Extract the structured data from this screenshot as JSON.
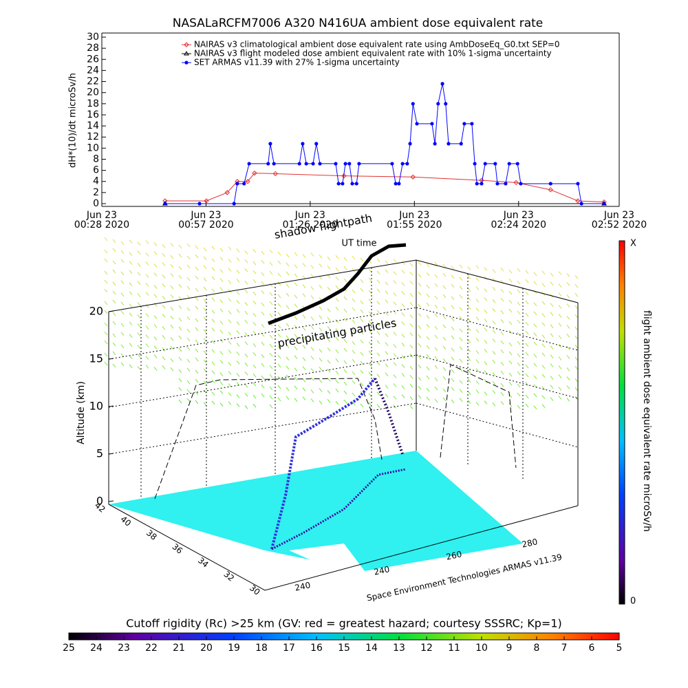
{
  "chart_data": {
    "type": "line",
    "title": "NASALaRCFM7006  A320 N416UA ambient dose equivalent rate",
    "y_label": "dH*(10)/dt microSv/h",
    "x_label": "UT time",
    "xlim": [
      28,
      172
    ],
    "xticks": [
      {
        "value": 28,
        "label": "Jun 23\n00:28 2020"
      },
      {
        "value": 57,
        "label": "Jun 23\n00:57 2020"
      },
      {
        "value": 86,
        "label": "Jun 23\n01:26 2020"
      },
      {
        "value": 115,
        "label": "Jun 23\n01:55 2020"
      },
      {
        "value": 144,
        "label": "Jun 23\n02:24 2020"
      },
      {
        "value": 172,
        "label": "Jun 23\n02:52 2020"
      }
    ],
    "ylim": [
      0,
      30
    ],
    "yticks": [
      0,
      2,
      4,
      6,
      8,
      10,
      12,
      14,
      16,
      18,
      20,
      22,
      24,
      26,
      28,
      30
    ],
    "series": [
      {
        "name": "NAIRAS v3 climatological ambient dose equivalent rate using AmbDoseEq_G0.txt SEP=0",
        "color": "#e03030",
        "marker": "diamond",
        "x": [
          45.6,
          57.1,
          62.9,
          65.7,
          68.6,
          70.5,
          76.3,
          95.4,
          114.6,
          133.7,
          143.3,
          152.9,
          160.5,
          167.8
        ],
        "values": [
          0.5,
          0.5,
          2,
          4,
          4,
          5.5,
          5.4,
          5,
          4.8,
          4.2,
          3.8,
          2.5,
          0.5,
          0.3
        ]
      },
      {
        "name": "NAIRAS v3 flight modeled dose ambient equivalent rate with 10% 1-sigma uncertainty",
        "color": "#000000",
        "marker": "triangle",
        "x": [
          45.6,
          167.8
        ],
        "values": [
          0,
          0
        ]
      },
      {
        "name": "SET ARMAS v11.39 with 27% 1-sigma uncertainty",
        "color": "#0000ff",
        "marker": "circle",
        "x": [
          45.6,
          55.2,
          64.8,
          65.7,
          67.6,
          69.0,
          74.3,
          74.9,
          75.9,
          83.0,
          83.9,
          84.9,
          86.8,
          87.7,
          88.7,
          93.1,
          93.9,
          95.0,
          95.8,
          96.9,
          97.7,
          98.9,
          99.6,
          108.8,
          109.8,
          110.7,
          111.7,
          113.0,
          113.8,
          114.6,
          115.7,
          119.9,
          120.7,
          121.6,
          122.8,
          123.7,
          124.5,
          128.0,
          128.9,
          131.0,
          131.8,
          132.4,
          133.7,
          134.7,
          137.5,
          138.1,
          140.4,
          141.4,
          143.7,
          144.6,
          152.9,
          160.5,
          161.5,
          167.8
        ],
        "values": [
          0,
          0,
          0,
          3.6,
          3.6,
          7.2,
          7.2,
          10.8,
          7.2,
          7.2,
          10.8,
          7.2,
          7.2,
          10.8,
          7.2,
          7.2,
          3.6,
          3.6,
          7.2,
          7.2,
          3.6,
          3.6,
          7.2,
          7.2,
          3.6,
          3.6,
          7.2,
          7.2,
          10.8,
          18,
          14.4,
          14.4,
          10.8,
          18,
          21.6,
          18,
          10.8,
          10.8,
          14.4,
          14.4,
          7.2,
          3.6,
          3.6,
          7.2,
          7.2,
          3.6,
          3.6,
          7.2,
          7.2,
          3.6,
          3.6,
          3.6,
          0,
          0
        ]
      }
    ]
  },
  "scene": {
    "annotations": [
      "shadow flightpath",
      "precipitating particles"
    ],
    "z_label": "Altitude (km)",
    "zticks": [
      0,
      5,
      10,
      15,
      20
    ],
    "lat_ticks": [
      42,
      40,
      38,
      36,
      34,
      32,
      30
    ],
    "lon_ticks": [
      240,
      240,
      260,
      280
    ],
    "credit": "Space Environment Technologies ARMAS v11.39"
  },
  "colorbar_right": {
    "label": "flight ambient dose equivalent rate microSv/h",
    "max_label": "X",
    "min_label": "0"
  },
  "colorbar_bottom": {
    "title": "Cutoff rigidity (Rc) >25 km (GV: red = greatest hazard; courtesy SSSRC; Kp=1)",
    "lim": [
      25,
      5
    ],
    "ticks": [
      25,
      24,
      23,
      22,
      21,
      20,
      19,
      18,
      17,
      16,
      15,
      14,
      13,
      12,
      11,
      10,
      9,
      8,
      7,
      6,
      5
    ]
  }
}
